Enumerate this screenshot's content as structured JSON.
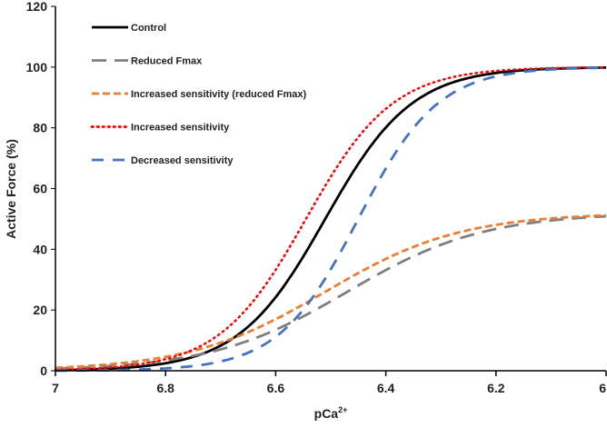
{
  "chart_data": {
    "type": "line",
    "title": "",
    "xlabel": "pCa",
    "xlabel_sup": "2+",
    "ylabel": "Active Force (%)",
    "xlim": [
      7,
      6
    ],
    "ylim": [
      0,
      120
    ],
    "x_ticks": [
      "7",
      "6.8",
      "6.6",
      "6.4",
      "6.2",
      "6"
    ],
    "x_tick_values": [
      7,
      6.8,
      6.6,
      6.4,
      6.2,
      6
    ],
    "y_ticks": [
      "0",
      "20",
      "40",
      "60",
      "80",
      "100",
      "120"
    ],
    "y_tick_values": [
      0,
      20,
      40,
      60,
      80,
      100,
      120
    ],
    "grid": false,
    "legend_position": "top-left",
    "model": "Hill equation: F = Fmax / (1 + 10^(n*(pCa - pCa50)))",
    "series": [
      {
        "name": "Control",
        "fmax": 100,
        "pCa50": 6.51,
        "hill_n": 5.5,
        "color": "#000000",
        "style": "solid"
      },
      {
        "name": "Reduced Fmax",
        "fmax": 52,
        "pCa50": 6.47,
        "hill_n": 3.5,
        "color": "#7f7f7f",
        "style": "long-dash"
      },
      {
        "name": "Increased sensitivity (reduced Fmax)",
        "fmax": 52,
        "pCa50": 6.51,
        "hill_n": 3.5,
        "color": "#ed7d31",
        "style": "short-dash"
      },
      {
        "name": "Increased sensitivity",
        "fmax": 100,
        "pCa50": 6.545,
        "hill_n": 5.5,
        "color": "#ff0000",
        "style": "dotted"
      },
      {
        "name": "Decreased sensitivity",
        "fmax": 100,
        "pCa50": 6.45,
        "hill_n": 6,
        "color": "#4472c4",
        "style": "dash"
      }
    ]
  }
}
